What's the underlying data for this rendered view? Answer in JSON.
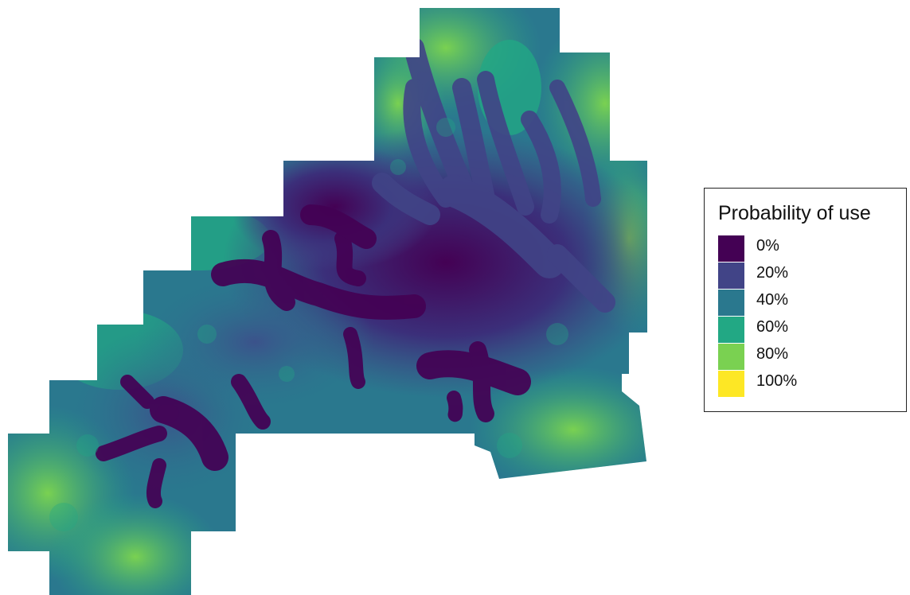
{
  "legend": {
    "title": "Probability of use",
    "items": [
      {
        "label": "0%",
        "color": "#440154"
      },
      {
        "label": "20%",
        "color": "#414487"
      },
      {
        "label": "40%",
        "color": "#2a788e"
      },
      {
        "label": "60%",
        "color": "#22a884"
      },
      {
        "label": "80%",
        "color": "#7ad151"
      },
      {
        "label": "100%",
        "color": "#fde725"
      }
    ]
  },
  "palette": {
    "background": "#ffffff",
    "low": "#440154",
    "mid": "#2a788e",
    "high": "#7ad151"
  }
}
